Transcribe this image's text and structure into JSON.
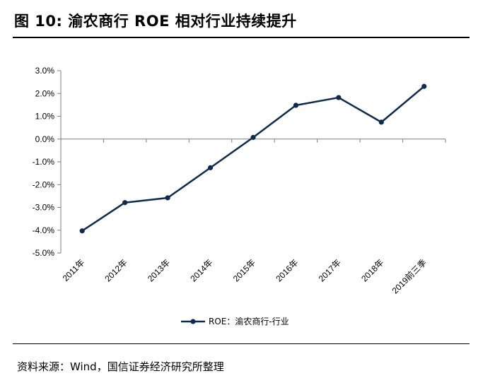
{
  "header": {
    "title": "图 10:  渝农商行 ROE 相对行业持续提升"
  },
  "footer": {
    "source": "资料来源：Wind，国信证券经济研究所整理"
  },
  "colors": {
    "series": "#0f2a4e",
    "axis": "#7f7f7f"
  },
  "chart_data": {
    "type": "line",
    "categories": [
      "2011年",
      "2012年",
      "2013年",
      "2014年",
      "2015年",
      "2016年",
      "2017年",
      "2018年",
      "2019前三季"
    ],
    "series": [
      {
        "name": "ROE：渝农商行-行业",
        "values": [
          -4.03,
          -2.79,
          -2.58,
          -1.26,
          0.07,
          1.48,
          1.82,
          0.74,
          2.31
        ]
      }
    ],
    "y_ticks": [
      "3.0%",
      "2.0%",
      "1.0%",
      "0.0%",
      "-1.0%",
      "-2.0%",
      "-3.0%",
      "-4.0%",
      "-5.0%"
    ],
    "ylim": [
      -5,
      3
    ],
    "grid": false,
    "legend_position": "bottom"
  }
}
